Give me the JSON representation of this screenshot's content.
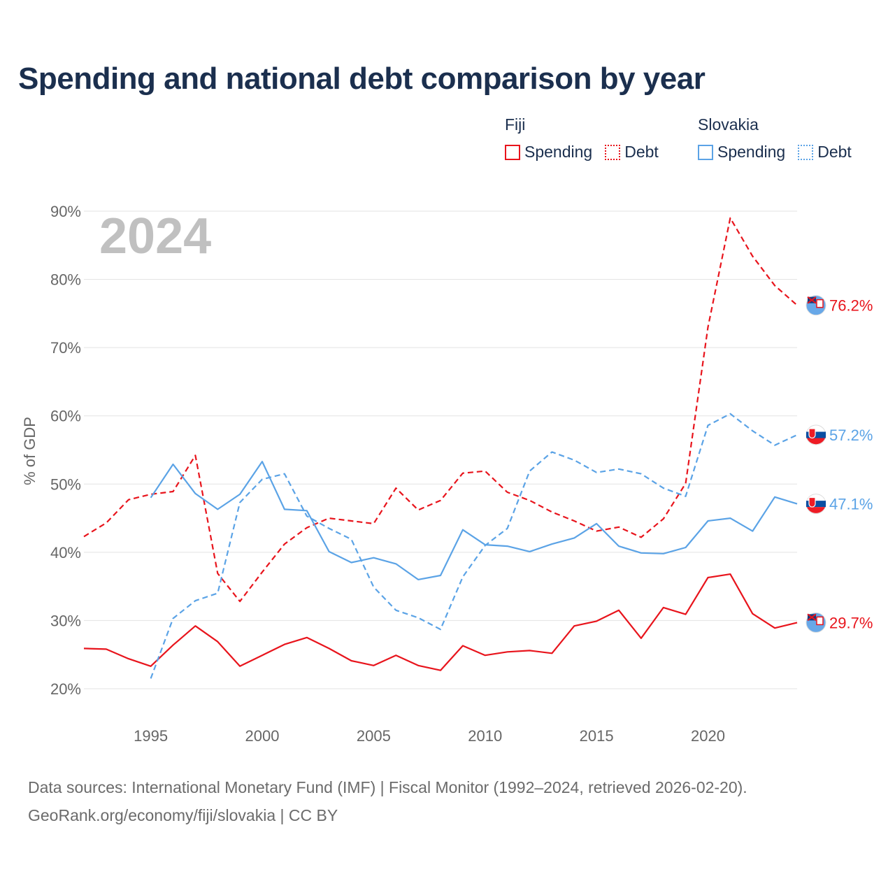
{
  "title": "Spending and national debt comparison by year",
  "legend": {
    "groups": [
      {
        "country": "Fiji",
        "color": "#e8141c",
        "spending_label": "Spending",
        "debt_label": "Debt"
      },
      {
        "country": "Slovakia",
        "color": "#5ba3e6",
        "spending_label": "Spending",
        "debt_label": "Debt"
      }
    ]
  },
  "year_label": "2024",
  "footer": {
    "line1": "Data sources: International Monetary Fund (IMF) | Fiscal Monitor (1992–2024, retrieved 2026-02-20).",
    "line2": "GeoRank.org/economy/fiji/slovakia | CC BY"
  },
  "chart_data": {
    "type": "line",
    "title": "Spending and national debt comparison by year",
    "xlabel": "",
    "ylabel": "% of GDP",
    "xlim": [
      1992,
      2024
    ],
    "ylim": [
      20,
      90
    ],
    "x_ticks": [
      1995,
      2000,
      2005,
      2010,
      2015,
      2020
    ],
    "x_tick_labels": [
      "1995",
      "2000",
      "2005",
      "2010",
      "2015",
      "2020"
    ],
    "y_ticks": [
      20,
      30,
      40,
      50,
      60,
      70,
      80,
      90
    ],
    "y_tick_labels": [
      "20%",
      "30%",
      "40%",
      "50%",
      "60%",
      "70%",
      "80%",
      "90%"
    ],
    "grid": true,
    "series": [
      {
        "name": "Fiji Spending",
        "key": "fiji-spending",
        "country": "Fiji",
        "color": "#e8141c",
        "style": "solid",
        "x": [
          1992,
          1993,
          1994,
          1995,
          1996,
          1997,
          1998,
          1999,
          2000,
          2001,
          2002,
          2003,
          2004,
          2005,
          2006,
          2007,
          2008,
          2009,
          2010,
          2011,
          2012,
          2013,
          2014,
          2015,
          2016,
          2017,
          2018,
          2019,
          2020,
          2021,
          2022,
          2023,
          2024
        ],
        "values": [
          25.9,
          25.8,
          24.4,
          23.3,
          26.4,
          29.2,
          26.9,
          23.3,
          24.9,
          26.5,
          27.5,
          25.9,
          24.1,
          23.4,
          24.9,
          23.4,
          22.7,
          26.3,
          24.9,
          25.4,
          25.6,
          25.2,
          29.2,
          29.9,
          31.5,
          27.4,
          31.9,
          30.9,
          36.3,
          36.8,
          31.0,
          28.9,
          29.7
        ],
        "end_label": "29.7%"
      },
      {
        "name": "Fiji Debt",
        "key": "fiji-debt",
        "country": "Fiji",
        "color": "#e8141c",
        "style": "dashed",
        "x": [
          1992,
          1993,
          1994,
          1995,
          1996,
          1997,
          1998,
          1999,
          2000,
          2001,
          2002,
          2003,
          2004,
          2005,
          2006,
          2007,
          2008,
          2009,
          2010,
          2011,
          2012,
          2013,
          2014,
          2015,
          2016,
          2017,
          2018,
          2019,
          2020,
          2021,
          2022,
          2023,
          2024
        ],
        "values": [
          42.3,
          44.3,
          47.7,
          48.5,
          48.9,
          54.2,
          36.9,
          32.8,
          37.1,
          41.2,
          43.6,
          45.0,
          44.6,
          44.2,
          49.4,
          46.2,
          47.6,
          51.6,
          51.9,
          48.8,
          47.6,
          45.9,
          44.6,
          43.1,
          43.7,
          42.2,
          44.9,
          50.1,
          73.0,
          89.0,
          83.4,
          79.1,
          76.2
        ],
        "end_label": "76.2%"
      },
      {
        "name": "Slovakia Spending",
        "key": "slovakia-spending",
        "country": "Slovakia",
        "color": "#5ba3e6",
        "style": "solid",
        "x": [
          1995,
          1996,
          1997,
          1998,
          1999,
          2000,
          2001,
          2002,
          2003,
          2004,
          2005,
          2006,
          2007,
          2008,
          2009,
          2010,
          2011,
          2012,
          2013,
          2014,
          2015,
          2016,
          2017,
          2018,
          2019,
          2020,
          2021,
          2022,
          2023,
          2024
        ],
        "values": [
          48.0,
          52.9,
          48.6,
          46.3,
          48.5,
          53.3,
          46.3,
          46.1,
          40.1,
          38.5,
          39.2,
          38.3,
          36.0,
          36.6,
          43.3,
          41.1,
          40.9,
          40.1,
          41.2,
          42.1,
          44.2,
          40.9,
          39.9,
          39.8,
          40.7,
          44.6,
          45.0,
          43.1,
          48.1,
          47.1
        ],
        "end_label": "47.1%"
      },
      {
        "name": "Slovakia Debt",
        "key": "slovakia-debt",
        "country": "Slovakia",
        "color": "#5ba3e6",
        "style": "dashed",
        "x": [
          1995,
          1996,
          1997,
          1998,
          1999,
          2000,
          2001,
          2002,
          2003,
          2004,
          2005,
          2006,
          2007,
          2008,
          2009,
          2010,
          2011,
          2012,
          2013,
          2014,
          2015,
          2016,
          2017,
          2018,
          2019,
          2020,
          2021,
          2022,
          2023,
          2024
        ],
        "values": [
          21.5,
          30.3,
          32.9,
          34.0,
          47.3,
          50.7,
          51.5,
          45.3,
          43.5,
          41.9,
          34.9,
          31.5,
          30.4,
          28.7,
          36.4,
          41.0,
          43.5,
          51.9,
          54.7,
          53.5,
          51.7,
          52.2,
          51.5,
          49.4,
          48.2,
          58.6,
          60.3,
          57.8,
          55.7,
          57.2
        ],
        "end_label": "57.2%"
      }
    ]
  }
}
